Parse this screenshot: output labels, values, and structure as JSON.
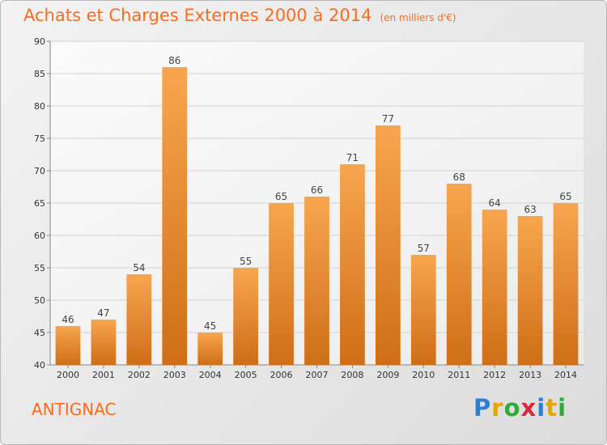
{
  "title": "Achats et Charges Externes 2000 à 2014",
  "unit": "(en milliers d'€)",
  "commune": "ANTIGNAC",
  "brand": {
    "text": "Proxiti",
    "letters": [
      {
        "char": "P",
        "color": "#2f7fd0"
      },
      {
        "char": "r",
        "color": "#e8a400"
      },
      {
        "char": "o",
        "color": "#2faa3a"
      },
      {
        "char": "x",
        "color": "#d7283a"
      },
      {
        "char": "i",
        "color": "#2f7fd0"
      },
      {
        "char": "t",
        "color": "#e8a400"
      },
      {
        "char": "i",
        "color": "#2faa3a"
      }
    ]
  },
  "colors": {
    "bar_light": "#f7a64f",
    "bar_dark": "#cf6e17",
    "accent": "#ff6a1a"
  },
  "chart_data": {
    "type": "bar",
    "title": "Achats et Charges Externes 2000 à 2014",
    "subtitle": "(en milliers d'€)",
    "xlabel": "",
    "ylabel": "",
    "categories": [
      "2000",
      "2001",
      "2002",
      "2003",
      "2004",
      "2005",
      "2006",
      "2007",
      "2008",
      "2009",
      "2010",
      "2011",
      "2012",
      "2013",
      "2014"
    ],
    "values": [
      46,
      47,
      54,
      86,
      45,
      55,
      65,
      66,
      71,
      77,
      57,
      68,
      64,
      63,
      65
    ],
    "ylim": [
      40,
      90
    ],
    "yticks": [
      40,
      45,
      50,
      55,
      60,
      65,
      70,
      75,
      80,
      85,
      90
    ],
    "grid": true,
    "legend": "none"
  }
}
